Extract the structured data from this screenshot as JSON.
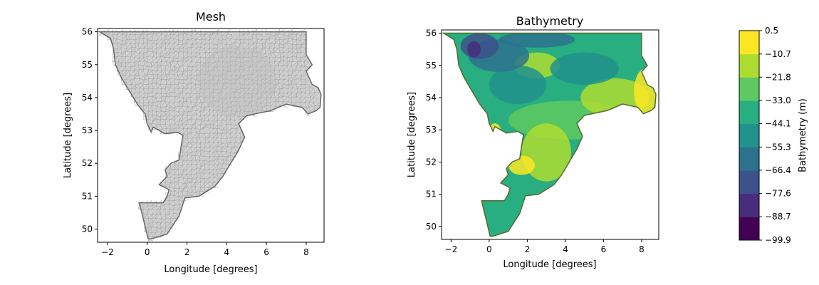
{
  "chart_data": [
    {
      "type": "mesh",
      "title": "Mesh",
      "xlabel": "Longitude [degrees]",
      "ylabel": "Latitude [degrees]",
      "xlim": [
        -2.5,
        8.9
      ],
      "ylim": [
        49.6,
        56.1
      ],
      "xticks": [
        -2,
        0,
        2,
        4,
        6,
        8
      ],
      "yticks": [
        50,
        51,
        52,
        53,
        54,
        55,
        56
      ],
      "mesh_color": "#a0a0a0",
      "outline_color": "#666666"
    },
    {
      "type": "heatmap",
      "title": "Bathymetry",
      "xlabel": "Longitude [degrees]",
      "ylabel": "Latitude [degrees]",
      "xlim": [
        -2.5,
        8.9
      ],
      "ylim": [
        49.6,
        56.1
      ],
      "xticks": [
        -2,
        0,
        2,
        4,
        6,
        8
      ],
      "yticks": [
        50,
        51,
        52,
        53,
        54,
        55,
        56
      ],
      "colormap": "viridis",
      "colorbar": {
        "label": "Bathymetry (m)",
        "levels": [
          -99.9,
          -88.7,
          -77.6,
          -66.4,
          -55.3,
          -44.1,
          -33.0,
          -21.8,
          -10.7,
          0.5
        ],
        "tick_labels": [
          "−99.9",
          "−88.7",
          "−77.6",
          "−66.4",
          "−55.3",
          "−44.1",
          "−33.0",
          "−21.8",
          "−10.7",
          "0.5"
        ],
        "colors": [
          "#440154",
          "#472d7b",
          "#3b528b",
          "#2c728e",
          "#21918c",
          "#28ae80",
          "#5ec962",
          "#addc30",
          "#fde725"
        ]
      }
    }
  ]
}
